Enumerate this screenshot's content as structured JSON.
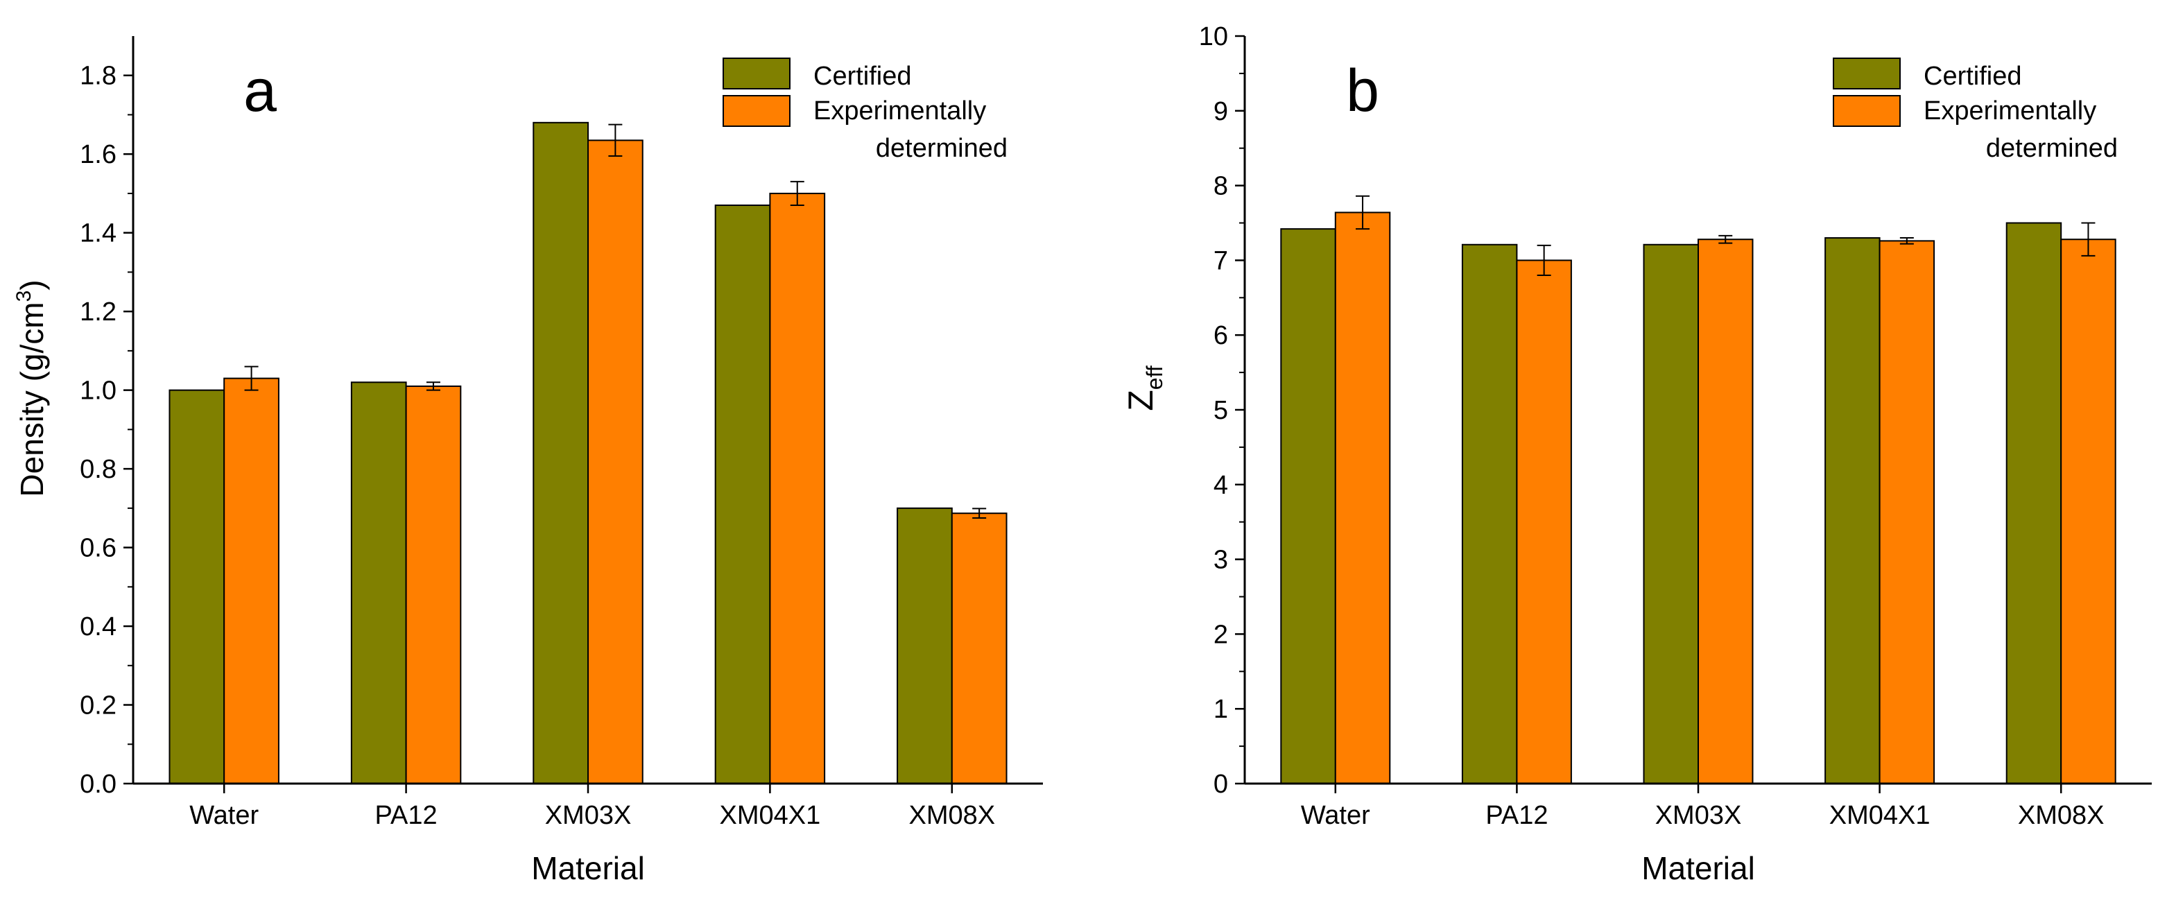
{
  "chart_data": [
    {
      "type": "bar",
      "panel_label": "a",
      "categories": [
        "Water",
        "PA12",
        "XM03X",
        "XM04X1",
        "XM08X"
      ],
      "series": [
        {
          "name": "Certified",
          "color": "#808000",
          "values": [
            1.0,
            1.02,
            1.68,
            1.47,
            0.7
          ]
        },
        {
          "name": "Experimentally determined",
          "color": "#ff7f00",
          "values": [
            1.03,
            1.01,
            1.635,
            1.5,
            0.687
          ],
          "errors": [
            0.03,
            0.01,
            0.04,
            0.03,
            0.012
          ]
        }
      ],
      "legend_lines": [
        "Certified",
        "Experimentally",
        "determined"
      ],
      "xlabel": "Material",
      "ylabel_main": "Density (g/cm",
      "ylabel_sup": "3",
      "ylabel_tail": ")",
      "ylim": [
        0,
        1.9
      ],
      "yticks": [
        "0.0",
        "0.2",
        "0.4",
        "0.6",
        "0.8",
        "1.0",
        "1.2",
        "1.4",
        "1.6",
        "1.8"
      ],
      "legend_position": "top-right",
      "grid": false
    },
    {
      "type": "bar",
      "panel_label": "b",
      "categories": [
        "Water",
        "PA12",
        "XM03X",
        "XM04X1",
        "XM08X"
      ],
      "series": [
        {
          "name": "Certified",
          "color": "#808000",
          "values": [
            7.42,
            7.21,
            7.21,
            7.3,
            7.5
          ]
        },
        {
          "name": "Experimentally determined",
          "color": "#ff7f00",
          "values": [
            7.64,
            7.0,
            7.28,
            7.26,
            7.28
          ],
          "errors": [
            0.22,
            0.2,
            0.05,
            0.04,
            0.22
          ]
        }
      ],
      "legend_lines": [
        "Certified",
        "Experimentally",
        "determined"
      ],
      "xlabel": "Material",
      "ylabel_main": "Z",
      "ylabel_sub": "eff",
      "ylim": [
        0,
        10
      ],
      "yticks": [
        "0",
        "1",
        "2",
        "3",
        "4",
        "5",
        "6",
        "7",
        "8",
        "9",
        "10"
      ],
      "legend_position": "top-right",
      "grid": false
    }
  ]
}
